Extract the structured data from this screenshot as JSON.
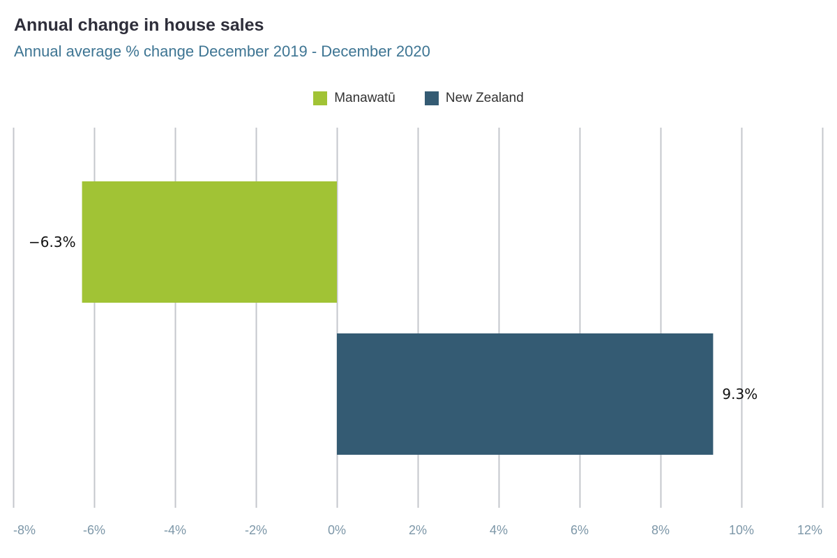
{
  "chart_data": {
    "type": "bar",
    "orientation": "horizontal",
    "title": "Annual change in house sales",
    "subtitle": "Annual average % change December 2019 - December 2020",
    "xlim": [
      -8,
      12
    ],
    "ticks": [
      -8,
      -6,
      -4,
      -2,
      0,
      2,
      4,
      6,
      8,
      10,
      12
    ],
    "tick_labels": [
      "-8%",
      "-6%",
      "-4%",
      "-2%",
      "0%",
      "2%",
      "4%",
      "6%",
      "8%",
      "10%",
      "12%"
    ],
    "grid": "vertical",
    "legend_position": "top-center",
    "series": [
      {
        "name": "Manawatū",
        "value": -6.3,
        "label": "−6.3%",
        "color": "#a1c335"
      },
      {
        "name": "New Zealand",
        "value": 9.3,
        "label": "9.3%",
        "color": "#345b73"
      }
    ]
  }
}
